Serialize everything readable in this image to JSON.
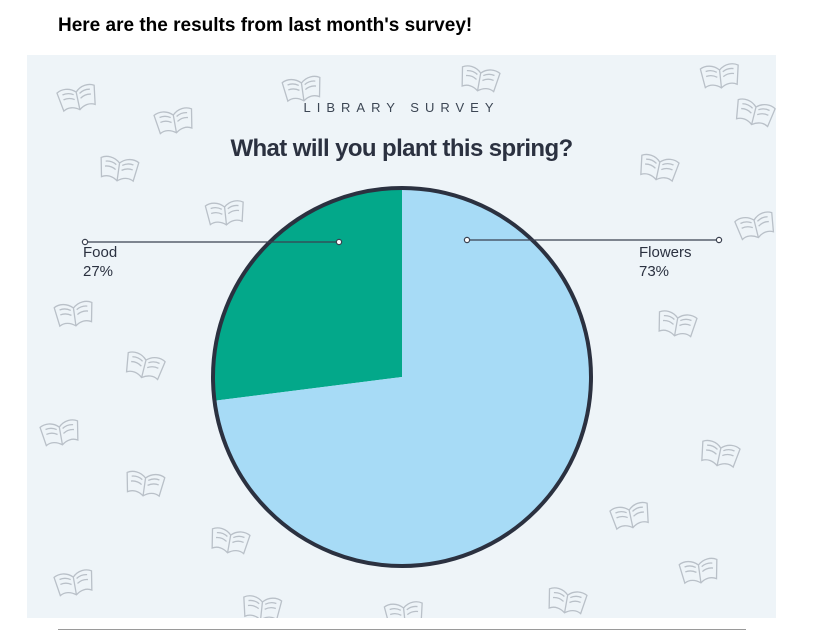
{
  "intro_text": "Here are the results from last month's survey!",
  "card": {
    "kicker": "LIBRARY SURVEY",
    "title": "What will you plant this spring?",
    "background": "#eef4f8",
    "decoration_icon": "open-book-icon"
  },
  "chart_data": {
    "type": "pie",
    "title": "What will you plant this spring?",
    "slices": [
      {
        "label": "Food",
        "value": 27,
        "display": "27%",
        "color": "#03a88a"
      },
      {
        "label": "Flowers",
        "value": 73,
        "display": "73%",
        "color": "#a7dbf6"
      }
    ],
    "outline_color": "#2b3140",
    "legend": "none"
  }
}
